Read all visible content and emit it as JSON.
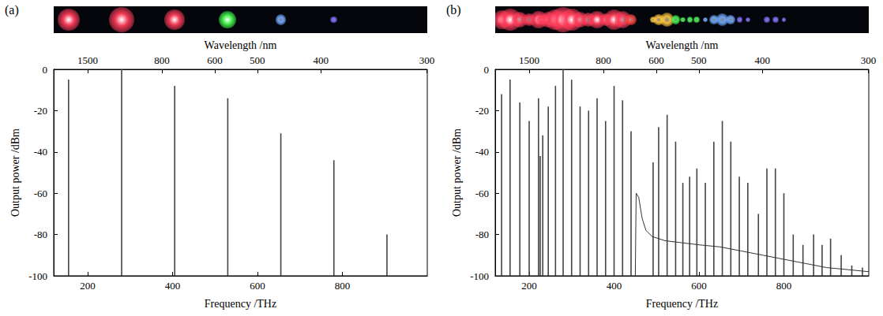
{
  "chart_data": [
    {
      "type": "stem",
      "title": "(a)",
      "x_label": "Frequency /THz",
      "x2_label": "Wavelength /nm",
      "y_label": "Output power /dBm",
      "xlim": [
        120,
        1000
      ],
      "xticks": [
        200,
        400,
        600,
        800
      ],
      "x2ticks": [
        {
          "value": 199.9,
          "label": "1500"
        },
        {
          "value": 374.7,
          "label": "800"
        },
        {
          "value": 499.7,
          "label": "600"
        },
        {
          "value": 599.6,
          "label": "500"
        },
        {
          "value": 749.5,
          "label": "400"
        },
        {
          "value": 999.3,
          "label": "300"
        }
      ],
      "ylim": [
        -100,
        0
      ],
      "yticks": [
        -100,
        -80,
        -60,
        -40,
        -20,
        0
      ],
      "grid": false,
      "series": [
        {
          "type": "stem",
          "color": "#444444",
          "x": [
            155,
            280,
            405,
            530,
            655,
            780,
            905
          ],
          "values": [
            -5,
            0,
            -8,
            -14,
            -31,
            -44,
            -80
          ]
        }
      ]
    },
    {
      "type": "stem",
      "title": "(b)",
      "x_label": "Frequency /THz",
      "x2_label": "Wavelength /nm",
      "y_label": "Output power /dBm",
      "xlim": [
        120,
        1000
      ],
      "xticks": [
        200,
        400,
        600,
        800
      ],
      "x2ticks": [
        {
          "value": 199.9,
          "label": "1500"
        },
        {
          "value": 374.7,
          "label": "800"
        },
        {
          "value": 499.7,
          "label": "600"
        },
        {
          "value": 599.6,
          "label": "500"
        },
        {
          "value": 749.5,
          "label": "400"
        },
        {
          "value": 999.3,
          "label": "300"
        }
      ],
      "ylim": [
        -100,
        0
      ],
      "yticks": [
        -100,
        -80,
        -60,
        -40,
        -20,
        0
      ],
      "grid": false,
      "series": [
        {
          "type": "stem",
          "color": "#444444",
          "x": [
            135,
            155,
            178,
            200,
            222,
            226,
            232,
            245,
            262,
            280,
            300,
            320,
            340,
            360,
            380,
            400,
            420,
            440,
            492,
            505,
            525,
            545,
            562,
            578,
            595,
            615,
            635,
            655,
            675,
            695,
            715,
            740,
            760,
            780,
            800,
            822,
            845,
            870,
            890,
            910,
            935,
            960,
            985
          ],
          "values": [
            -12,
            -5,
            -16,
            -25,
            -14,
            -42,
            -32,
            -18,
            -8,
            0,
            -5,
            -18,
            -20,
            -14,
            -25,
            -8,
            -15,
            -30,
            -45,
            -28,
            -22,
            -35,
            -55,
            -52,
            -48,
            -55,
            -35,
            -25,
            -35,
            -52,
            -55,
            -70,
            -48,
            -48,
            -60,
            -80,
            -85,
            -80,
            -85,
            -82,
            -90,
            -95,
            -96
          ]
        },
        {
          "type": "line",
          "color": "#333333",
          "x": [
            450,
            452,
            458,
            466,
            475,
            490,
            520,
            560,
            600,
            650,
            700,
            750,
            800,
            850,
            900,
            950,
            1000
          ],
          "values": [
            -100,
            -60,
            -62,
            -72,
            -78,
            -81,
            -83,
            -84,
            -85,
            -86,
            -88,
            -90,
            -92,
            -94,
            -96,
            -97,
            -98
          ]
        }
      ]
    }
  ]
}
